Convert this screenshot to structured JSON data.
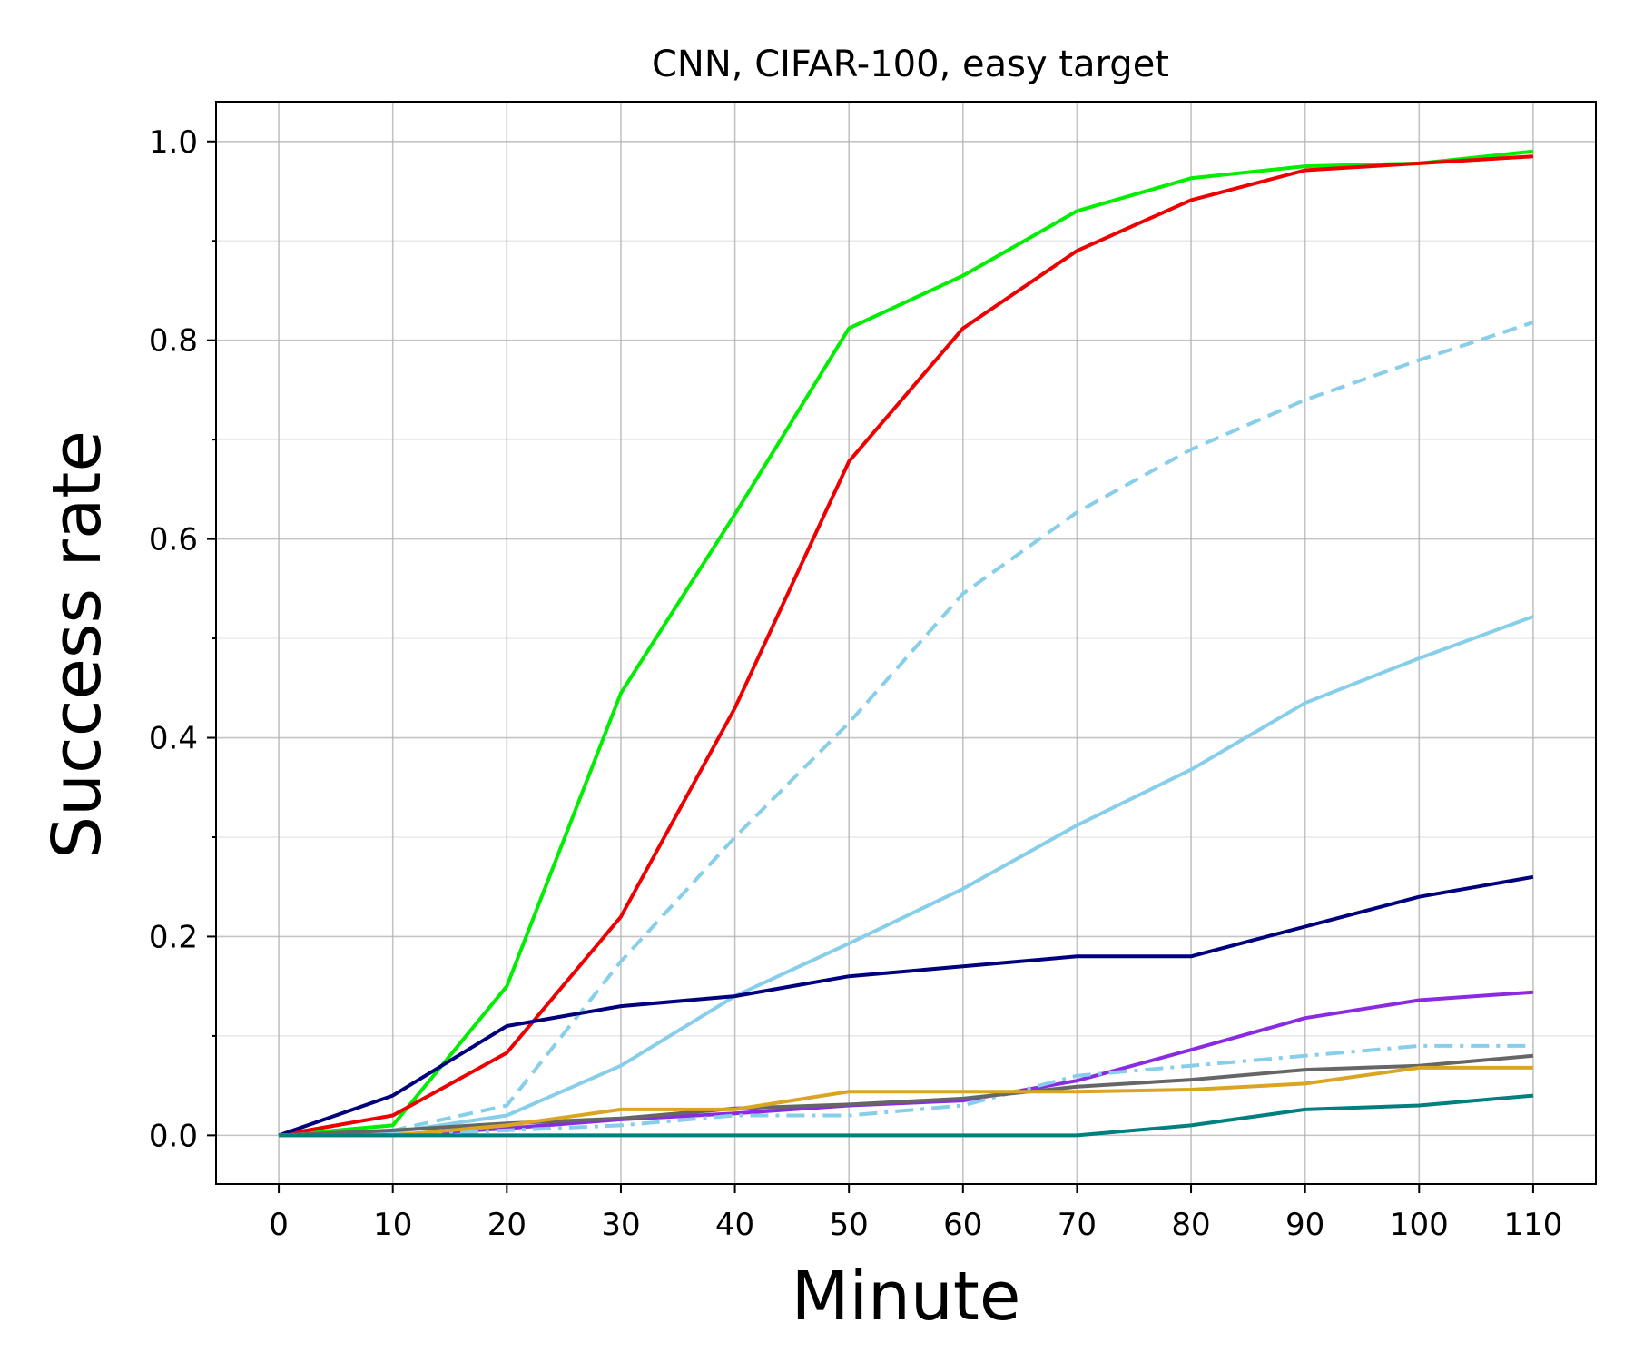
{
  "chart_data": {
    "type": "line",
    "title": "CNN, CIFAR-100, easy target",
    "xlabel": "Minute",
    "ylabel": "Success rate",
    "x": [
      0,
      10,
      20,
      30,
      40,
      50,
      60,
      70,
      80,
      90,
      100,
      110
    ],
    "xlim": [
      -5.5,
      115.5
    ],
    "ylim": [
      -0.049,
      1.04
    ],
    "xticks": [
      0,
      10,
      20,
      30,
      40,
      50,
      60,
      70,
      80,
      90,
      100,
      110
    ],
    "xtick_labels": [
      "0",
      "10",
      "20",
      "30",
      "40",
      "50",
      "60",
      "70",
      "80",
      "90",
      "100",
      "110"
    ],
    "yticks": [
      0.0,
      0.2,
      0.4,
      0.6,
      0.8,
      1.0
    ],
    "ytick_labels": [
      "0.0",
      "0.2",
      "0.4",
      "0.6",
      "0.8",
      "1.0"
    ],
    "yticks_minor": [
      0.1,
      0.3,
      0.5,
      0.7,
      0.9
    ],
    "grid": true,
    "series": [
      {
        "color": "#00ee00",
        "style": "solid",
        "values": [
          0.0,
          0.01,
          0.15,
          0.445,
          0.625,
          0.812,
          0.865,
          0.93,
          0.963,
          0.975,
          0.978,
          0.99
        ]
      },
      {
        "color": "#ee0000",
        "style": "solid",
        "values": [
          0.0,
          0.02,
          0.083,
          0.22,
          0.43,
          0.678,
          0.812,
          0.89,
          0.941,
          0.971,
          0.978,
          0.985
        ]
      },
      {
        "color": "#87ceeb",
        "style": "dashed",
        "values": [
          0.0,
          0.005,
          0.03,
          0.175,
          0.3,
          0.415,
          0.545,
          0.627,
          0.69,
          0.74,
          0.78,
          0.818
        ]
      },
      {
        "color": "#87ceeb",
        "style": "solid",
        "values": [
          0.0,
          0.003,
          0.02,
          0.07,
          0.14,
          0.193,
          0.248,
          0.312,
          0.368,
          0.435,
          0.48,
          0.522
        ]
      },
      {
        "color": "#00007f",
        "style": "solid",
        "values": [
          0.0,
          0.04,
          0.11,
          0.13,
          0.14,
          0.16,
          0.17,
          0.18,
          0.18,
          0.21,
          0.24,
          0.26
        ]
      },
      {
        "color": "#8a2be2",
        "style": "solid",
        "values": [
          0.0,
          0.0,
          0.007,
          0.016,
          0.022,
          0.03,
          0.035,
          0.055,
          0.086,
          0.118,
          0.136,
          0.144
        ]
      },
      {
        "color": "#87ceeb",
        "style": "dashdot",
        "values": [
          0.0,
          0.0,
          0.005,
          0.01,
          0.02,
          0.02,
          0.03,
          0.06,
          0.07,
          0.08,
          0.09,
          0.09
        ]
      },
      {
        "color": "#666666",
        "style": "solid",
        "values": [
          0.0,
          0.005,
          0.012,
          0.017,
          0.027,
          0.031,
          0.037,
          0.049,
          0.056,
          0.066,
          0.07,
          0.08
        ]
      },
      {
        "color": "#daa520",
        "style": "solid",
        "values": [
          0.0,
          0.0,
          0.01,
          0.026,
          0.026,
          0.044,
          0.044,
          0.044,
          0.046,
          0.052,
          0.068,
          0.068
        ]
      },
      {
        "color": "#007f7f",
        "style": "solid",
        "values": [
          0.0,
          0.0,
          0.0,
          0.0,
          0.0,
          0.0,
          0.0,
          0.0,
          0.01,
          0.026,
          0.03,
          0.04
        ]
      }
    ]
  }
}
